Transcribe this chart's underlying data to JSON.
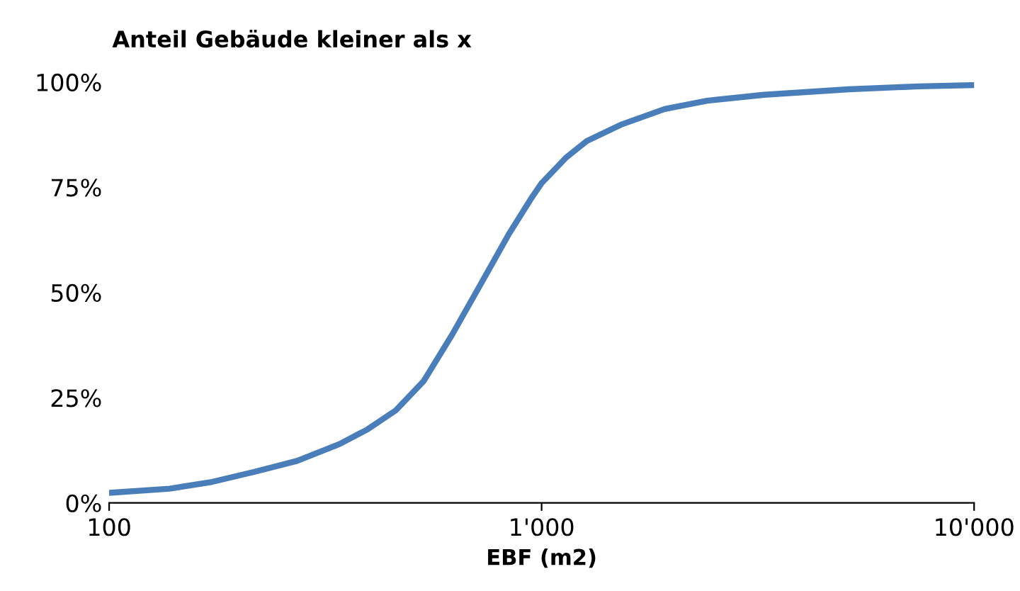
{
  "chart_data": {
    "type": "line",
    "title": "Anteil Gebäude kleiner als x",
    "xlabel": "EBF (m2)",
    "log": "x",
    "xlim": [
      100,
      10000
    ],
    "xticks": [
      {
        "value": 100,
        "label": "100"
      },
      {
        "value": 1000,
        "label": "1'000"
      },
      {
        "value": 10000,
        "label": "10'000"
      }
    ],
    "ylim": [
      0,
      100
    ],
    "yticks": [
      {
        "value": 0,
        "label": "0%"
      },
      {
        "value": 25,
        "label": "25%"
      },
      {
        "value": 50,
        "label": "50%"
      },
      {
        "value": 75,
        "label": "75%"
      },
      {
        "value": 100,
        "label": "100%"
      }
    ],
    "grid": false,
    "legend": false,
    "marker": "none",
    "line_style": "solid",
    "series": [
      {
        "color": "#4a7ebb",
        "x": [
          100,
          138,
          173,
          217,
          272,
          341,
          396,
          460,
          534,
          621,
          723,
          841,
          941,
          1000,
          1137,
          1272,
          1535,
          1925,
          2414,
          3268,
          5127,
          7472,
          10000
        ],
        "values": [
          2.4,
          3.4,
          5,
          7.4,
          10,
          14,
          17.5,
          22,
          29,
          40,
          52,
          64,
          72,
          76,
          82,
          86,
          90,
          93.6,
          95.6,
          97,
          98.3,
          99,
          99.3
        ]
      }
    ]
  }
}
